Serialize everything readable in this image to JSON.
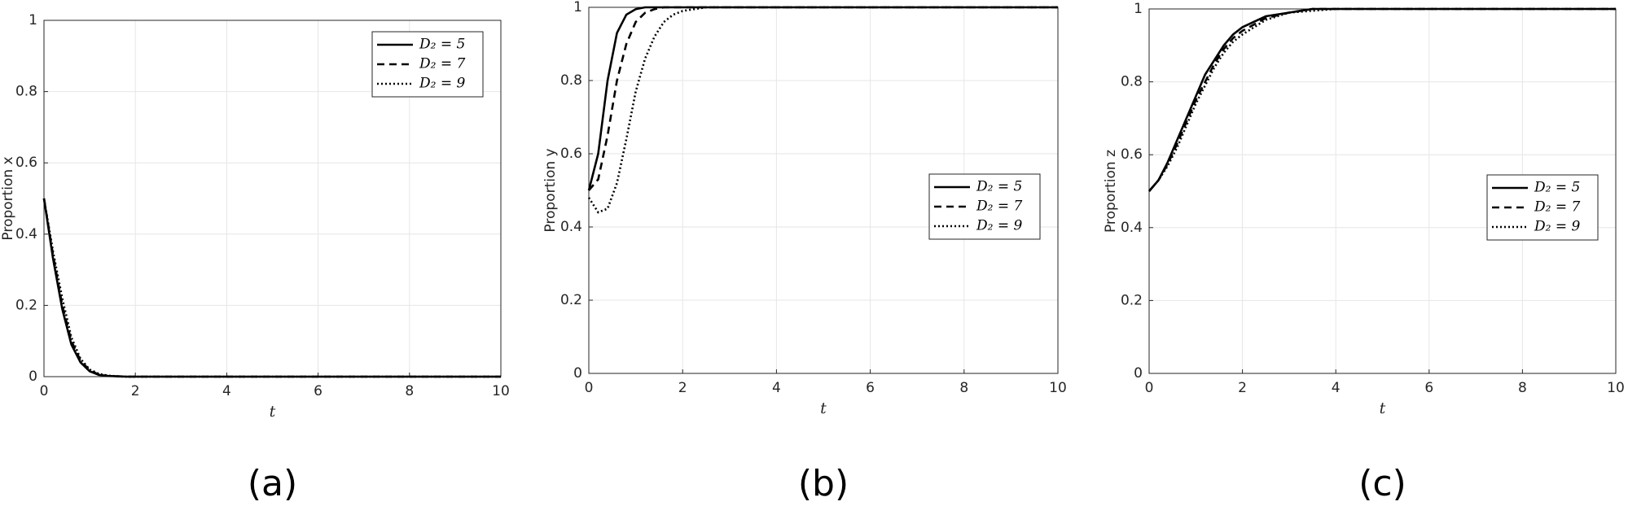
{
  "chart_data": [
    {
      "type": "line",
      "caption": "(a)",
      "xlabel": "t",
      "ylabel": "Proportion x",
      "x": [
        0,
        0.2,
        0.4,
        0.6,
        0.8,
        1,
        1.2,
        1.4,
        1.6,
        1.8,
        2,
        2.5,
        3,
        3.5,
        4,
        5,
        6,
        7,
        8,
        9,
        10
      ],
      "xlim": [
        0,
        10
      ],
      "xticks": [
        0,
        2,
        4,
        6,
        8,
        10
      ],
      "ylim": [
        0,
        1
      ],
      "yticks": [
        0,
        0.2,
        0.4,
        0.6,
        0.8,
        1
      ],
      "grid": true,
      "legend": "upper right",
      "series": [
        {
          "name": "D₂ = 5",
          "color": "#000000",
          "style": "solid",
          "values": [
            0.5,
            0.33,
            0.19,
            0.09,
            0.04,
            0.015,
            0.005,
            0.002,
            0.001,
            0,
            0,
            0,
            0,
            0,
            0,
            0,
            0,
            0,
            0,
            0,
            0
          ]
        },
        {
          "name": "D₂ = 7",
          "color": "#000000",
          "style": "dashed",
          "values": [
            0.5,
            0.34,
            0.2,
            0.1,
            0.045,
            0.018,
            0.006,
            0.002,
            0.001,
            0,
            0,
            0,
            0,
            0,
            0,
            0,
            0,
            0,
            0,
            0,
            0
          ]
        },
        {
          "name": "D₂ = 9",
          "color": "#000000",
          "style": "dotted",
          "values": [
            0.5,
            0.35,
            0.22,
            0.11,
            0.05,
            0.02,
            0.008,
            0.003,
            0.001,
            0,
            0,
            0,
            0,
            0,
            0,
            0,
            0,
            0,
            0,
            0,
            0
          ]
        }
      ]
    },
    {
      "type": "line",
      "caption": "(b)",
      "xlabel": "t",
      "ylabel": "Proportion y",
      "x": [
        0,
        0.2,
        0.4,
        0.6,
        0.8,
        1,
        1.2,
        1.4,
        1.6,
        1.8,
        2,
        2.5,
        3,
        3.5,
        4,
        5,
        6,
        7,
        8,
        9,
        10
      ],
      "xlim": [
        0,
        10
      ],
      "xticks": [
        0,
        2,
        4,
        6,
        8,
        10
      ],
      "ylim": [
        0,
        1
      ],
      "yticks": [
        0,
        0.2,
        0.4,
        0.6,
        0.8,
        1
      ],
      "grid": true,
      "legend": "center right",
      "series": [
        {
          "name": "D₂ = 5",
          "color": "#000000",
          "style": "solid",
          "values": [
            0.5,
            0.6,
            0.8,
            0.93,
            0.98,
            0.995,
            1,
            1,
            1,
            1,
            1,
            1,
            1,
            1,
            1,
            1,
            1,
            1,
            1,
            1,
            1
          ]
        },
        {
          "name": "D₂ = 7",
          "color": "#000000",
          "style": "dashed",
          "values": [
            0.5,
            0.53,
            0.65,
            0.8,
            0.9,
            0.96,
            0.985,
            0.995,
            1,
            1,
            1,
            1,
            1,
            1,
            1,
            1,
            1,
            1,
            1,
            1,
            1
          ]
        },
        {
          "name": "D₂ = 9",
          "color": "#000000",
          "style": "dotted",
          "values": [
            0.48,
            0.44,
            0.45,
            0.52,
            0.64,
            0.77,
            0.86,
            0.92,
            0.96,
            0.98,
            0.99,
            1,
            1,
            1,
            1,
            1,
            1,
            1,
            1,
            1,
            1
          ]
        }
      ]
    },
    {
      "type": "line",
      "caption": "(c)",
      "xlabel": "t",
      "ylabel": "Proportion z",
      "x": [
        0,
        0.2,
        0.4,
        0.6,
        0.8,
        1,
        1.2,
        1.4,
        1.6,
        1.8,
        2,
        2.5,
        3,
        3.5,
        4,
        5,
        6,
        7,
        8,
        9,
        10
      ],
      "xlim": [
        0,
        10
      ],
      "xticks": [
        0,
        2,
        4,
        6,
        8,
        10
      ],
      "ylim": [
        0,
        1
      ],
      "yticks": [
        0,
        0.2,
        0.4,
        0.6,
        0.8,
        1
      ],
      "grid": true,
      "legend": "center right",
      "series": [
        {
          "name": "D₂ = 5",
          "color": "#000000",
          "style": "solid",
          "values": [
            0.5,
            0.53,
            0.58,
            0.64,
            0.7,
            0.76,
            0.82,
            0.86,
            0.9,
            0.93,
            0.95,
            0.98,
            0.99,
            1,
            1,
            1,
            1,
            1,
            1,
            1,
            1
          ]
        },
        {
          "name": "D₂ = 7",
          "color": "#000000",
          "style": "dashed",
          "values": [
            0.5,
            0.53,
            0.575,
            0.63,
            0.69,
            0.75,
            0.8,
            0.85,
            0.89,
            0.92,
            0.94,
            0.975,
            0.99,
            1,
            1,
            1,
            1,
            1,
            1,
            1,
            1
          ]
        },
        {
          "name": "D₂ = 9",
          "color": "#000000",
          "style": "dotted",
          "values": [
            0.5,
            0.53,
            0.57,
            0.62,
            0.68,
            0.74,
            0.79,
            0.84,
            0.88,
            0.91,
            0.93,
            0.97,
            0.99,
            0.995,
            1,
            1,
            1,
            1,
            1,
            1,
            1
          ]
        }
      ]
    }
  ]
}
